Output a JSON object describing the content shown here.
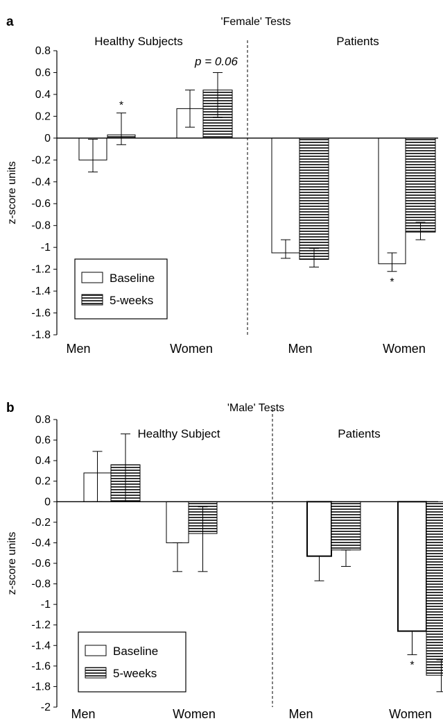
{
  "chart_data": [
    {
      "panel": "a",
      "type": "bar",
      "title": "'Female' Tests",
      "ylabel": "z-score units",
      "ylim": [
        -1.8,
        0.8
      ],
      "yticks": [
        "0.8",
        "0.6",
        "0.4",
        "0.2",
        "0",
        "-0.2",
        "-0.4",
        "-0.6",
        "-0.8",
        "-1",
        "-1.2",
        "-1.4",
        "-1.6",
        "-1.8"
      ],
      "groups": [
        "Healthy Subjects",
        "Patients"
      ],
      "categories": [
        "Men",
        "Women",
        "Men",
        "Women"
      ],
      "series": [
        {
          "name": "Baseline",
          "values": [
            -0.2,
            0.27,
            -1.05,
            -1.15
          ],
          "err_low": [
            -0.31,
            0.1,
            -1.1,
            -1.22
          ],
          "err_high": [
            -0.01,
            0.44,
            -0.93,
            -1.05
          ]
        },
        {
          "name": "5-weeks",
          "values": [
            0.03,
            0.44,
            -1.11,
            -0.86
          ],
          "err_low": [
            -0.06,
            0.19,
            -1.18,
            -0.93
          ],
          "err_high": [
            0.23,
            0.6,
            -1.01,
            -0.77
          ]
        }
      ],
      "annotations": [
        {
          "text": "p = 0.06",
          "category_index": 1
        },
        {
          "text": "*",
          "category_index": 0,
          "series": "5-weeks",
          "position": "above"
        },
        {
          "text": "*",
          "category_index": 3,
          "series": "Baseline",
          "position": "below"
        }
      ],
      "legend_position": "bottom-left"
    },
    {
      "panel": "b",
      "type": "bar",
      "title": "'Male' Tests",
      "ylabel": "z-score units",
      "ylim": [
        -2,
        0.8
      ],
      "yticks": [
        "0.8",
        "0.6",
        "0.4",
        "0.2",
        "0",
        "-0.2",
        "-0.4",
        "-0.6",
        "-0.8",
        "-1",
        "-1.2",
        "-1.4",
        "-1.6",
        "-1.8",
        "-2"
      ],
      "groups": [
        "Healthy Subject",
        "Patients"
      ],
      "categories": [
        "Men",
        "Women",
        "Men",
        "Women"
      ],
      "series": [
        {
          "name": "Baseline",
          "values": [
            0.28,
            -0.4,
            -0.53,
            -1.26
          ],
          "err_low": [
            0.0,
            -0.68,
            -0.77,
            -1.49
          ],
          "err_high": [
            0.49,
            -0.4,
            -0.53,
            -1.26
          ]
        },
        {
          "name": "5-weeks",
          "values": [
            0.36,
            -0.31,
            -0.47,
            -1.69
          ],
          "err_low": [
            0.0,
            -0.68,
            -0.63,
            -1.85
          ],
          "err_high": [
            0.66,
            -0.05,
            -0.47,
            -1.54
          ]
        }
      ],
      "annotations": [
        {
          "text": "*",
          "category_index": 3,
          "series": "Baseline",
          "position": "below"
        }
      ],
      "legend_position": "bottom-left"
    }
  ]
}
